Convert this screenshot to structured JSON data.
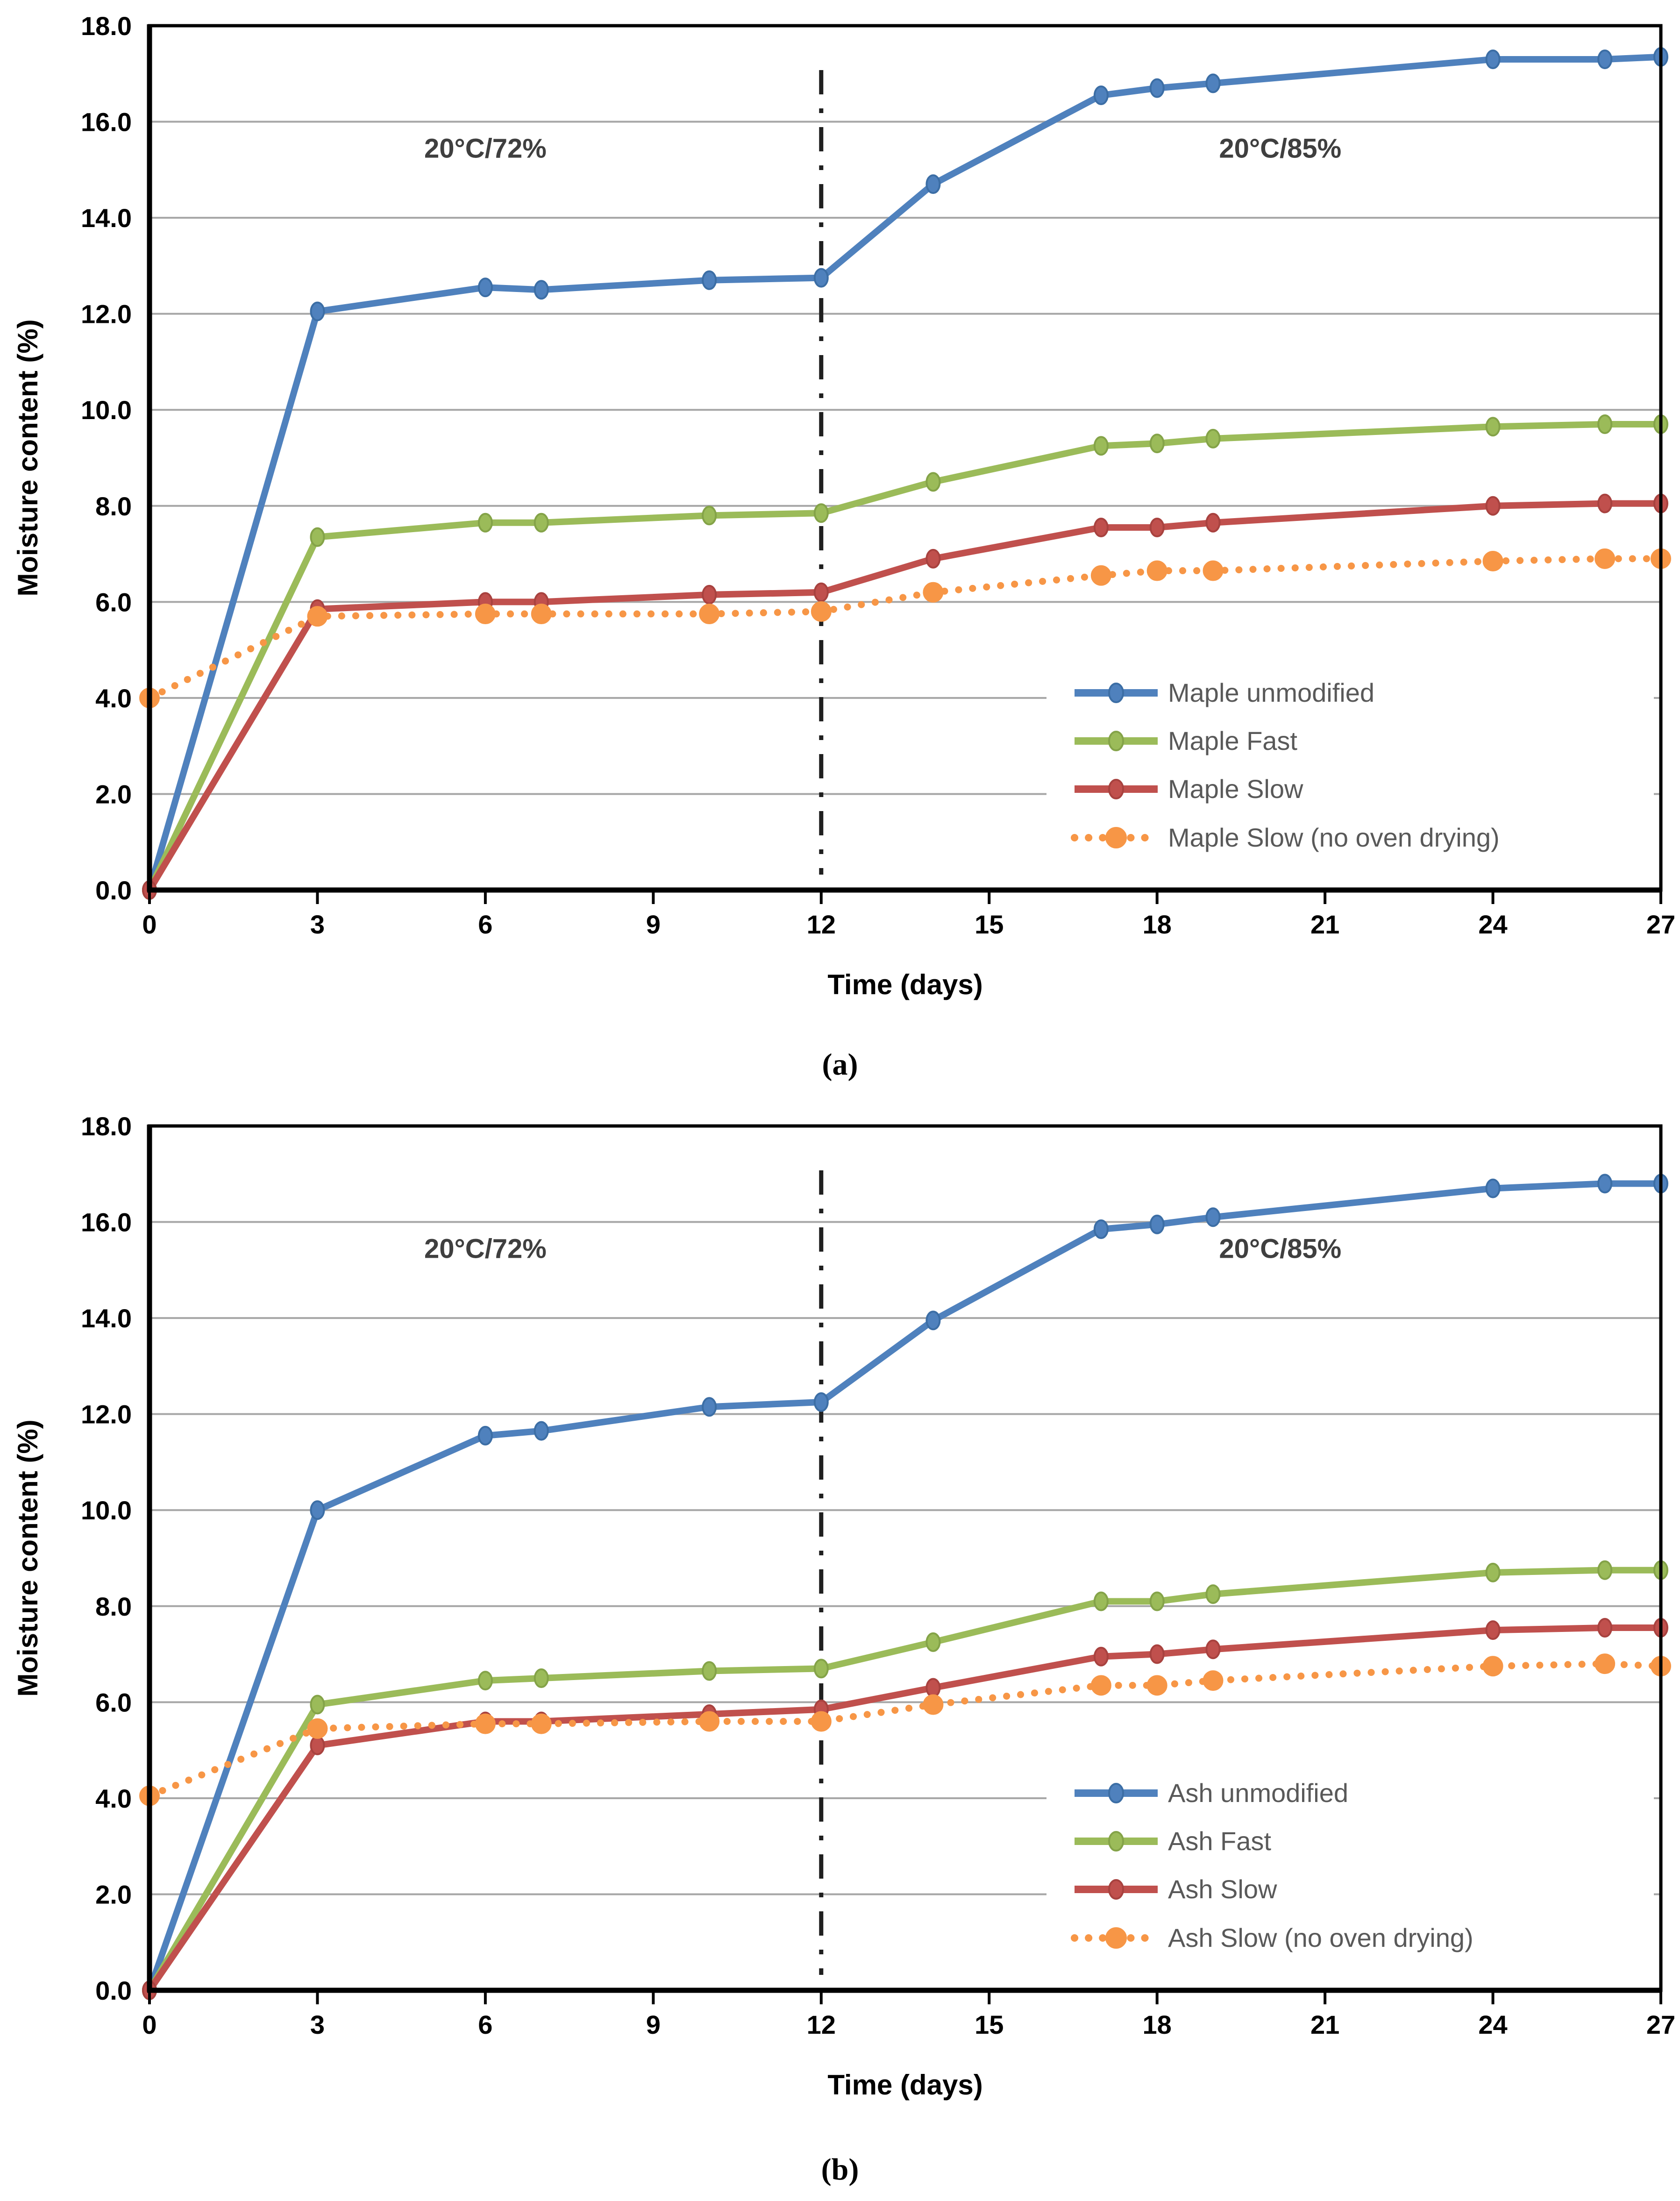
{
  "figure": {
    "background": "#ffffff",
    "panel_count": 2
  },
  "colors": {
    "grid": "#a6a6a6",
    "axis": "#000000",
    "tick_text": "#000000",
    "legend_text": "#595959",
    "annotation_text": "#3f3f3f",
    "divider": "#1f1f1f",
    "legend_background": "#ffffff"
  },
  "chart_data": [
    {
      "type": "line",
      "caption": "(a)",
      "xlabel": "Time (days)",
      "ylabel": "Moisture content (%)",
      "xlim": [
        0,
        27
      ],
      "ylim": [
        0,
        18
      ],
      "grid": "horizontal",
      "x_ticks": [
        "0",
        "3",
        "6",
        "9",
        "12",
        "15",
        "18",
        "21",
        "24",
        "27"
      ],
      "x_tick_values": [
        0,
        3,
        6,
        9,
        12,
        15,
        18,
        21,
        24,
        27
      ],
      "y_ticks": [
        "0.0",
        "2.0",
        "4.0",
        "6.0",
        "8.0",
        "10.0",
        "12.0",
        "14.0",
        "16.0",
        "18.0"
      ],
      "y_tick_values": [
        0,
        2,
        4,
        6,
        8,
        10,
        12,
        14,
        16,
        18
      ],
      "divider_day": 12,
      "annotations": [
        {
          "text": "20°C/72%",
          "day": 6.0,
          "value": 15.25
        },
        {
          "text": "20°C/85%",
          "day": 20.2,
          "value": 15.25
        }
      ],
      "x": [
        0,
        3,
        6,
        7,
        10,
        12,
        14,
        17,
        18,
        19,
        24,
        26,
        27
      ],
      "series": [
        {
          "name": "Maple unmodified",
          "color": "#4f81bd",
          "marker_color": "#3c6ea5",
          "style": "solid",
          "values": [
            0.0,
            12.05,
            12.55,
            12.5,
            12.7,
            12.75,
            14.7,
            16.55,
            16.7,
            16.8,
            17.3,
            17.3,
            17.35
          ]
        },
        {
          "name": "Maple Fast",
          "color": "#9bbb59",
          "marker_color": "#84a348",
          "style": "solid",
          "values": [
            0.0,
            7.35,
            7.65,
            7.65,
            7.8,
            7.85,
            8.5,
            9.25,
            9.3,
            9.4,
            9.65,
            9.7,
            9.7
          ]
        },
        {
          "name": "Maple Slow",
          "color": "#c0504d",
          "marker_color": "#a8423f",
          "style": "solid",
          "values": [
            0.0,
            5.85,
            6.0,
            6.0,
            6.15,
            6.2,
            6.9,
            7.55,
            7.55,
            7.65,
            8.0,
            8.05,
            8.05
          ]
        },
        {
          "name": "Maple Slow (no oven drying)",
          "color": "#f79646",
          "marker_color": "#f79646",
          "style": "dotted",
          "values": [
            4.0,
            5.7,
            5.75,
            5.75,
            5.75,
            5.8,
            6.2,
            6.55,
            6.65,
            6.65,
            6.85,
            6.9,
            6.9
          ]
        }
      ],
      "legend_position": "inside-lower-right"
    },
    {
      "type": "line",
      "caption": "(b)",
      "xlabel": "Time (days)",
      "ylabel": "Moisture content (%)",
      "xlim": [
        0,
        27
      ],
      "ylim": [
        0,
        18
      ],
      "grid": "horizontal",
      "x_ticks": [
        "0",
        "3",
        "6",
        "9",
        "12",
        "15",
        "18",
        "21",
        "24",
        "27"
      ],
      "x_tick_values": [
        0,
        3,
        6,
        9,
        12,
        15,
        18,
        21,
        24,
        27
      ],
      "y_ticks": [
        "0.0",
        "2.0",
        "4.0",
        "6.0",
        "8.0",
        "10.0",
        "12.0",
        "14.0",
        "16.0",
        "18.0"
      ],
      "y_tick_values": [
        0,
        2,
        4,
        6,
        8,
        10,
        12,
        14,
        16,
        18
      ],
      "divider_day": 12,
      "annotations": [
        {
          "text": "20°C/72%",
          "day": 6.0,
          "value": 15.25
        },
        {
          "text": "20°C/85%",
          "day": 20.2,
          "value": 15.25
        }
      ],
      "x": [
        0,
        3,
        6,
        7,
        10,
        12,
        14,
        17,
        18,
        19,
        24,
        26,
        27
      ],
      "series": [
        {
          "name": "Ash unmodified",
          "color": "#4f81bd",
          "marker_color": "#3c6ea5",
          "style": "solid",
          "values": [
            0.0,
            10.0,
            11.55,
            11.65,
            12.15,
            12.25,
            13.95,
            15.85,
            15.95,
            16.1,
            16.7,
            16.8,
            16.8
          ]
        },
        {
          "name": "Ash Fast",
          "color": "#9bbb59",
          "marker_color": "#84a348",
          "style": "solid",
          "values": [
            0.0,
            5.95,
            6.45,
            6.5,
            6.65,
            6.7,
            7.25,
            8.1,
            8.1,
            8.25,
            8.7,
            8.75,
            8.75
          ]
        },
        {
          "name": "Ash Slow",
          "color": "#c0504d",
          "marker_color": "#a8423f",
          "style": "solid",
          "values": [
            0.0,
            5.1,
            5.6,
            5.6,
            5.75,
            5.85,
            6.3,
            6.95,
            7.0,
            7.1,
            7.5,
            7.55,
            7.55
          ]
        },
        {
          "name": "Ash Slow (no oven drying)",
          "color": "#f79646",
          "marker_color": "#f79646",
          "style": "dotted",
          "values": [
            4.05,
            5.45,
            5.55,
            5.55,
            5.6,
            5.6,
            5.95,
            6.35,
            6.35,
            6.45,
            6.75,
            6.8,
            6.75
          ]
        }
      ],
      "legend_position": "inside-lower-right"
    }
  ]
}
